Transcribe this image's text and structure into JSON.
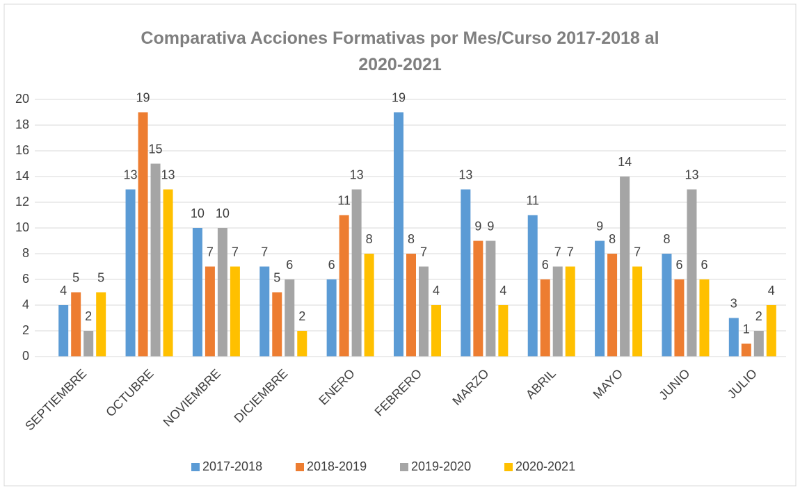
{
  "chart_data": {
    "type": "bar",
    "title": "Comparativa Acciones Formativas por Mes/Curso 2017-2018 al 2020-2021",
    "categories": [
      "SEPTIEMBRE",
      "OCTUBRE",
      "NOVIEMBRE",
      "DICIEMBRE",
      "ENERO",
      "FEBRERO",
      "MARZO",
      "ABRIL",
      "MAYO",
      "JUNIO",
      "JULIO"
    ],
    "series": [
      {
        "name": "2017-2018",
        "color": "#5b9bd5",
        "values": [
          4,
          13,
          10,
          7,
          6,
          19,
          13,
          11,
          9,
          8,
          3
        ]
      },
      {
        "name": "2018-2019",
        "color": "#ed7d31",
        "values": [
          5,
          19,
          7,
          5,
          11,
          8,
          9,
          6,
          8,
          6,
          1
        ]
      },
      {
        "name": "2019-2020",
        "color": "#a5a5a5",
        "values": [
          2,
          15,
          10,
          6,
          13,
          7,
          9,
          7,
          14,
          13,
          2
        ]
      },
      {
        "name": "2020-2021",
        "color": "#ffc000",
        "values": [
          5,
          13,
          7,
          2,
          8,
          4,
          4,
          7,
          7,
          6,
          4
        ]
      }
    ],
    "ylim": [
      0,
      20
    ],
    "yticks": [
      0,
      2,
      4,
      6,
      8,
      10,
      12,
      14,
      16,
      18,
      20
    ],
    "grid": true,
    "legend": "bottom"
  }
}
